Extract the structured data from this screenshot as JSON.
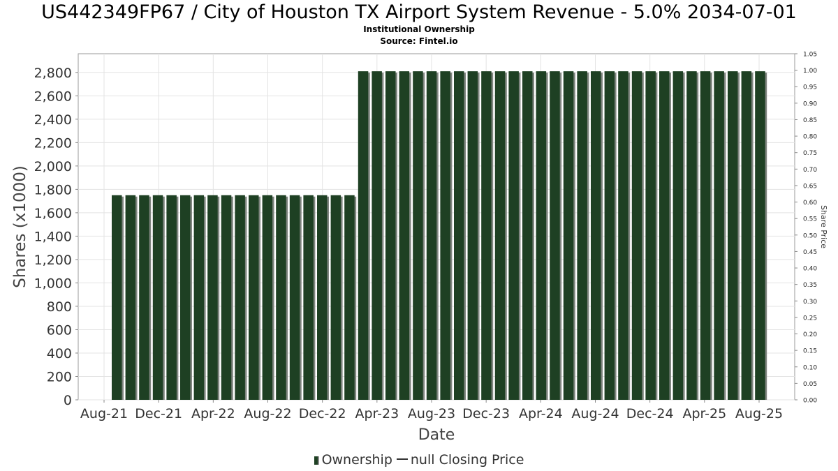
{
  "chart_data": {
    "type": "bar",
    "title": "US442349FP67 / City of Houston TX Airport System Revenue - 5.0% 2034-07-01",
    "subtitle": "Institutional Ownership",
    "source": "Source: Fintel.io",
    "xlabel": "Date",
    "ylabel": "Shares (x1000)",
    "y2label": "Share Price",
    "ylim": [
      0,
      2960
    ],
    "y2lim": [
      0,
      1.05
    ],
    "y_ticks": [
      "0",
      "200",
      "400",
      "600",
      "800",
      "1,000",
      "1,200",
      "1,400",
      "1,600",
      "1,800",
      "2,000",
      "2,200",
      "2,400",
      "2,600",
      "2,800"
    ],
    "y2_ticks": [
      "0.00",
      "0.05",
      "0.10",
      "0.15",
      "0.20",
      "0.25",
      "0.30",
      "0.35",
      "0.40",
      "0.45",
      "0.50",
      "0.55",
      "0.60",
      "0.65",
      "0.70",
      "0.75",
      "0.80",
      "0.85",
      "0.90",
      "0.95",
      "1.00",
      "1.05"
    ],
    "x_ticks": [
      "Aug-21",
      "Dec-21",
      "Apr-22",
      "Aug-22",
      "Dec-22",
      "Apr-23",
      "Aug-23",
      "Dec-23",
      "Apr-24",
      "Aug-24",
      "Dec-24",
      "Apr-25",
      "Aug-25"
    ],
    "grid": true,
    "legend_placement": "bottom",
    "colors": {
      "bar": "#1e4023",
      "bar_shadow": "#7f857f"
    },
    "series": [
      {
        "name": "Ownership",
        "values": [
          1750,
          1750,
          1750,
          1750,
          1750,
          1750,
          1750,
          1750,
          1750,
          1750,
          1750,
          1750,
          1750,
          1750,
          1750,
          1750,
          1750,
          1750,
          2810,
          2810,
          2810,
          2810,
          2810,
          2810,
          2810,
          2810,
          2810,
          2810,
          2810,
          2810,
          2810,
          2810,
          2810,
          2810,
          2810,
          2810,
          2810,
          2810,
          2810,
          2810,
          2810,
          2810,
          2810,
          2810,
          2810,
          2810,
          2810,
          2810
        ]
      },
      {
        "name": "null Closing Price",
        "values": []
      }
    ]
  },
  "legend": {
    "ownership": "Ownership",
    "price": "null Closing Price"
  }
}
